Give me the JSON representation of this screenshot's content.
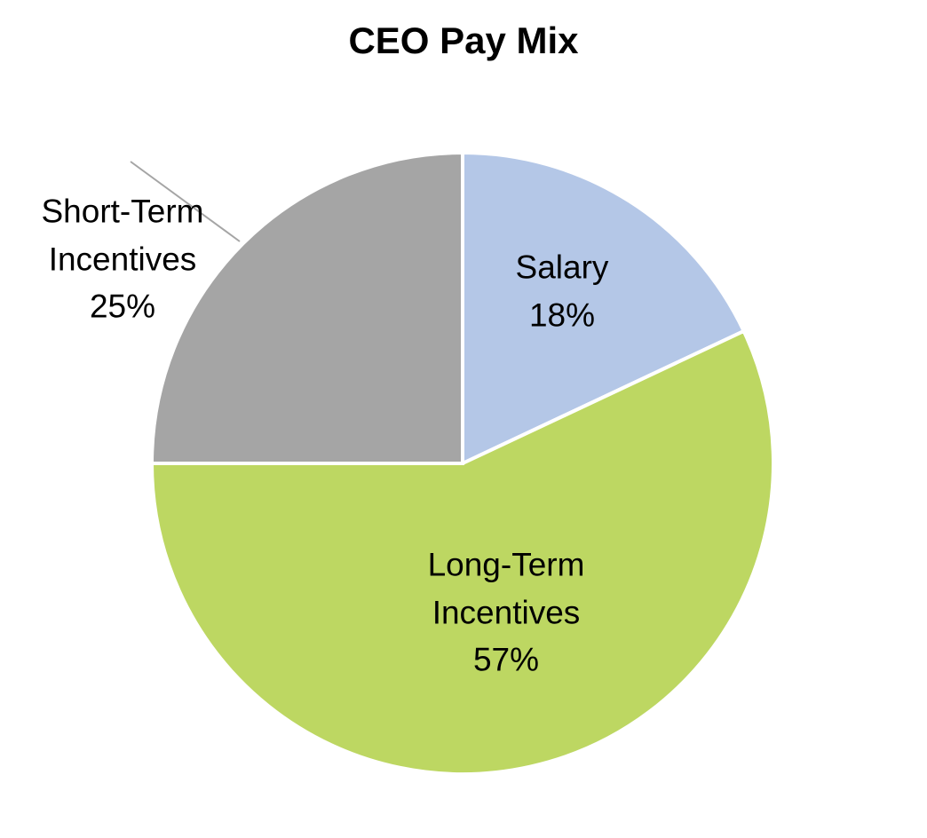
{
  "chart_data": {
    "type": "pie",
    "title": "CEO Pay Mix",
    "categories": [
      "Salary",
      "Long-Term Incentives",
      "Short-Term Incentives"
    ],
    "values": [
      18,
      57,
      25
    ],
    "value_labels": [
      "18%",
      "57%",
      "25%"
    ],
    "colors": [
      "#b4c7e7",
      "#bdd762",
      "#a5a5a5"
    ]
  }
}
